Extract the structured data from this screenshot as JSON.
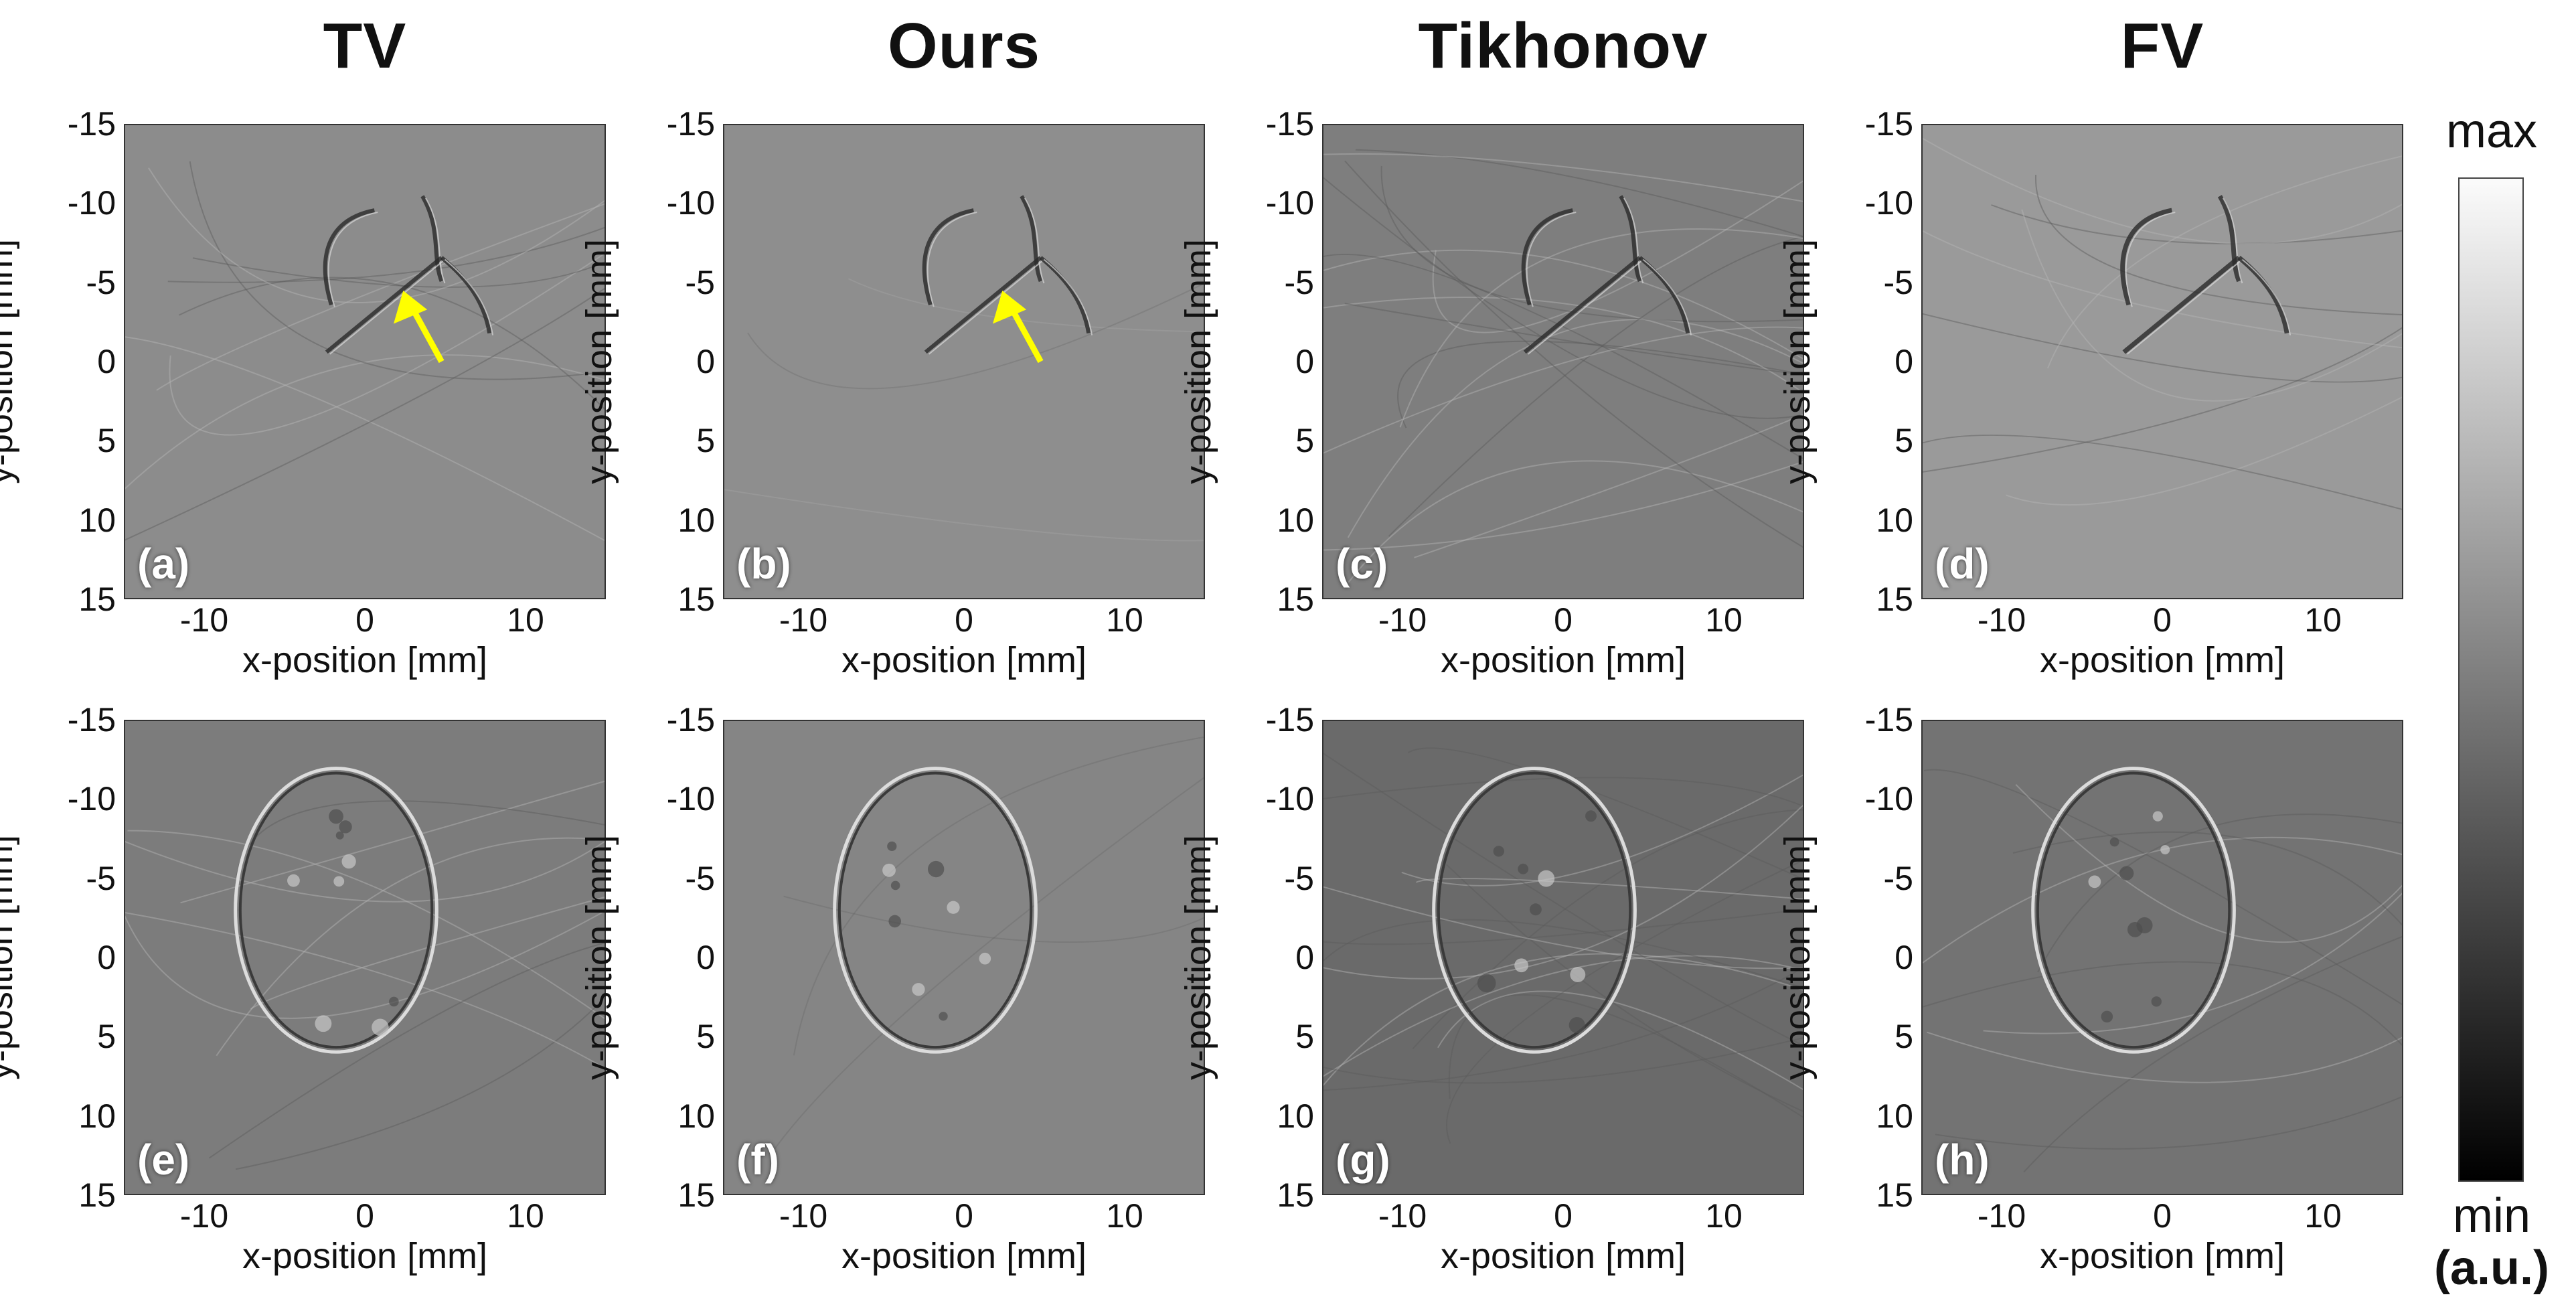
{
  "columns": [
    {
      "title": "TV",
      "tone": "#8c8c8c",
      "tone_bottom": "#7c7c7c"
    },
    {
      "title": "Ours",
      "tone": "#8e8e8e",
      "tone_bottom": "#858585"
    },
    {
      "title": "Tikhonov",
      "tone": "#7e7e7e",
      "tone_bottom": "#6a6a6a"
    },
    {
      "title": "FV",
      "tone": "#9a9a9a",
      "tone_bottom": "#737373"
    }
  ],
  "panels": {
    "top": [
      "(a)",
      "(b)",
      "(c)",
      "(d)"
    ],
    "bottom": [
      "(e)",
      "(f)",
      "(g)",
      "(h)"
    ]
  },
  "axes": {
    "xlabel": "x-position [mm]",
    "ylabel": "y-position [mm]",
    "xticks": [
      "-10",
      "0",
      "10"
    ],
    "yticks": [
      "-15",
      "-10",
      "-5",
      "0",
      "5",
      "10",
      "15"
    ]
  },
  "colorbar": {
    "max_label": "max",
    "min_label": "min",
    "unit_label": "(a.u.)",
    "top_color": "#fbfbfb",
    "bottom_color": "#000000"
  },
  "annotation": {
    "arrow_color": "#ffff00"
  }
}
